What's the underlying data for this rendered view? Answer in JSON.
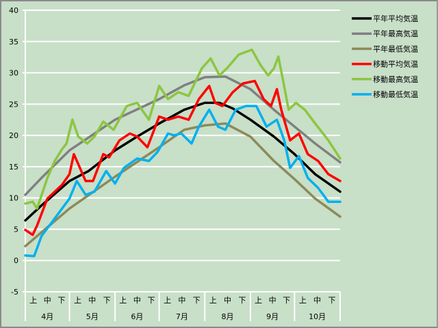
{
  "chart_data": {
    "type": "line",
    "title": "",
    "xlabel": "",
    "ylabel": "",
    "ylim": [
      -5,
      40
    ],
    "yticks": [
      "40",
      "35",
      "30",
      "25",
      "20",
      "15",
      "10",
      "5",
      "0",
      "-5"
    ],
    "ytick_values": [
      40,
      35,
      30,
      25,
      20,
      15,
      10,
      5,
      0,
      -5
    ],
    "x_unit": "days since Apr 1",
    "xlim": [
      0,
      214
    ],
    "grid": true,
    "legend_position": "right",
    "months": [
      {
        "label": "4月",
        "start": 0,
        "end": 30
      },
      {
        "label": "5月",
        "start": 30,
        "end": 61
      },
      {
        "label": "6月",
        "start": 61,
        "end": 91
      },
      {
        "label": "7月",
        "start": 91,
        "end": 122
      },
      {
        "label": "8月",
        "start": 122,
        "end": 153
      },
      {
        "label": "9月",
        "start": 153,
        "end": 183
      },
      {
        "label": "10月",
        "start": 183,
        "end": 214
      }
    ],
    "decades": [
      "上",
      "中",
      "下"
    ],
    "series": [
      {
        "name": "平年平均気温",
        "color": "#000000",
        "points": [
          [
            0,
            6.4
          ],
          [
            11,
            8.8
          ],
          [
            30,
            12.7
          ],
          [
            43,
            14.3
          ],
          [
            61,
            17.6
          ],
          [
            76,
            19.8
          ],
          [
            91,
            21.9
          ],
          [
            108,
            24.1
          ],
          [
            122,
            25.2
          ],
          [
            132,
            25.2
          ],
          [
            141,
            24.3
          ],
          [
            153,
            22.5
          ],
          [
            169,
            19.8
          ],
          [
            183,
            17.0
          ],
          [
            197,
            13.8
          ],
          [
            214,
            11.0
          ]
        ]
      },
      {
        "name": "平年最高気温",
        "color": "#808080",
        "points": [
          [
            0,
            10.5
          ],
          [
            11,
            13.2
          ],
          [
            30,
            17.6
          ],
          [
            61,
            22.5
          ],
          [
            91,
            25.8
          ],
          [
            108,
            28.0
          ],
          [
            122,
            29.3
          ],
          [
            136,
            29.4
          ],
          [
            153,
            27.4
          ],
          [
            169,
            24.1
          ],
          [
            183,
            21.4
          ],
          [
            197,
            18.7
          ],
          [
            214,
            15.7
          ]
        ]
      },
      {
        "name": "平年最低気温",
        "color": "#8c8a5a",
        "points": [
          [
            0,
            2.3
          ],
          [
            11,
            4.5
          ],
          [
            30,
            8.3
          ],
          [
            61,
            13.4
          ],
          [
            91,
            18.1
          ],
          [
            108,
            20.9
          ],
          [
            122,
            21.6
          ],
          [
            136,
            21.9
          ],
          [
            153,
            19.8
          ],
          [
            169,
            15.9
          ],
          [
            183,
            13.0
          ],
          [
            197,
            9.9
          ],
          [
            214,
            7.0
          ]
        ]
      },
      {
        "name": "移動平均気温",
        "color": "#ff0000",
        "points": [
          [
            0,
            4.9
          ],
          [
            5,
            4.1
          ],
          [
            8,
            5.6
          ],
          [
            15,
            9.9
          ],
          [
            25,
            12.1
          ],
          [
            30,
            13.8
          ],
          [
            33,
            17.0
          ],
          [
            36,
            15.4
          ],
          [
            41,
            12.7
          ],
          [
            46,
            12.7
          ],
          [
            53,
            17.0
          ],
          [
            57,
            16.5
          ],
          [
            64,
            19.2
          ],
          [
            71,
            20.3
          ],
          [
            76,
            19.8
          ],
          [
            83,
            18.1
          ],
          [
            91,
            23.0
          ],
          [
            97,
            22.5
          ],
          [
            104,
            23.0
          ],
          [
            111,
            22.5
          ],
          [
            118,
            25.8
          ],
          [
            125,
            27.9
          ],
          [
            129,
            25.2
          ],
          [
            134,
            24.7
          ],
          [
            141,
            26.9
          ],
          [
            148,
            28.3
          ],
          [
            156,
            28.7
          ],
          [
            162,
            25.8
          ],
          [
            167,
            24.7
          ],
          [
            171,
            27.4
          ],
          [
            174,
            24.1
          ],
          [
            180,
            19.2
          ],
          [
            186,
            20.3
          ],
          [
            192,
            17.0
          ],
          [
            199,
            15.9
          ],
          [
            206,
            13.8
          ],
          [
            214,
            12.7
          ]
        ]
      },
      {
        "name": "移動最高気温",
        "color": "#8cc63f",
        "points": [
          [
            0,
            9.1
          ],
          [
            5,
            9.4
          ],
          [
            8,
            8.3
          ],
          [
            15,
            13.2
          ],
          [
            20,
            15.9
          ],
          [
            25,
            17.8
          ],
          [
            28,
            18.7
          ],
          [
            32,
            22.5
          ],
          [
            36,
            19.8
          ],
          [
            42,
            18.7
          ],
          [
            47,
            19.8
          ],
          [
            53,
            22.2
          ],
          [
            60,
            20.9
          ],
          [
            69,
            24.7
          ],
          [
            76,
            25.2
          ],
          [
            84,
            22.5
          ],
          [
            91,
            27.9
          ],
          [
            97,
            25.8
          ],
          [
            104,
            26.9
          ],
          [
            111,
            26.3
          ],
          [
            120,
            30.7
          ],
          [
            126,
            32.3
          ],
          [
            132,
            29.6
          ],
          [
            137,
            30.7
          ],
          [
            145,
            32.9
          ],
          [
            154,
            33.7
          ],
          [
            160,
            31.2
          ],
          [
            165,
            29.6
          ],
          [
            169,
            30.7
          ],
          [
            172,
            32.6
          ],
          [
            175,
            29.0
          ],
          [
            179,
            24.1
          ],
          [
            184,
            25.2
          ],
          [
            190,
            24.1
          ],
          [
            197,
            21.9
          ],
          [
            206,
            19.2
          ],
          [
            214,
            16.3
          ]
        ]
      },
      {
        "name": "移動最低気温",
        "color": "#00b0f0",
        "points": [
          [
            0,
            0.8
          ],
          [
            6,
            0.7
          ],
          [
            11,
            3.9
          ],
          [
            18,
            6.1
          ],
          [
            25,
            8.3
          ],
          [
            30,
            9.9
          ],
          [
            35,
            12.7
          ],
          [
            41,
            10.5
          ],
          [
            47,
            11.0
          ],
          [
            55,
            14.3
          ],
          [
            61,
            12.3
          ],
          [
            67,
            14.8
          ],
          [
            76,
            16.3
          ],
          [
            84,
            15.9
          ],
          [
            90,
            17.4
          ],
          [
            97,
            20.3
          ],
          [
            101,
            20.0
          ],
          [
            106,
            20.3
          ],
          [
            113,
            18.7
          ],
          [
            118,
            21.4
          ],
          [
            125,
            24.1
          ],
          [
            131,
            21.4
          ],
          [
            136,
            20.9
          ],
          [
            143,
            24.1
          ],
          [
            150,
            24.7
          ],
          [
            157,
            24.7
          ],
          [
            164,
            21.4
          ],
          [
            171,
            22.5
          ],
          [
            176,
            19.2
          ],
          [
            180,
            14.8
          ],
          [
            186,
            16.7
          ],
          [
            192,
            13.2
          ],
          [
            199,
            11.6
          ],
          [
            206,
            9.4
          ],
          [
            214,
            9.4
          ]
        ]
      }
    ]
  }
}
